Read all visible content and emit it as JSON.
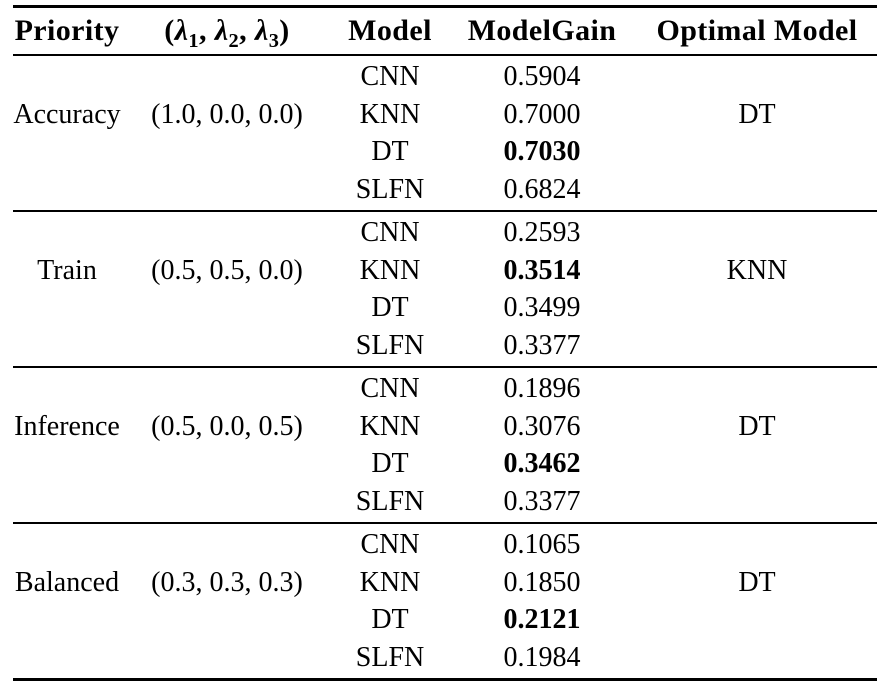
{
  "header": {
    "priority": "Priority",
    "lambda": {
      "open": "(",
      "l1": "λ",
      "sub1": "1",
      "sep1": ", ",
      "l2": "λ",
      "sub2": "2",
      "sep2": ", ",
      "l3": "λ",
      "sub3": "3",
      "close": ")"
    },
    "model": "Model",
    "modelgain": "ModelGain",
    "optimal": "Optimal Model"
  },
  "groups": [
    {
      "priority": "Accuracy",
      "lambdas": "(1.0, 0.0, 0.0)",
      "optimal": "DT",
      "rows": [
        {
          "model": "CNN",
          "gain": "0.5904",
          "best": false
        },
        {
          "model": "KNN",
          "gain": "0.7000",
          "best": false
        },
        {
          "model": "DT",
          "gain": "0.7030",
          "best": true
        },
        {
          "model": "SLFN",
          "gain": "0.6824",
          "best": false
        }
      ]
    },
    {
      "priority": "Train",
      "lambdas": "(0.5, 0.5, 0.0)",
      "optimal": "KNN",
      "rows": [
        {
          "model": "CNN",
          "gain": "0.2593",
          "best": false
        },
        {
          "model": "KNN",
          "gain": "0.3514",
          "best": true
        },
        {
          "model": "DT",
          "gain": "0.3499",
          "best": false
        },
        {
          "model": "SLFN",
          "gain": "0.3377",
          "best": false
        }
      ]
    },
    {
      "priority": "Inference",
      "lambdas": "(0.5, 0.0, 0.5)",
      "optimal": "DT",
      "rows": [
        {
          "model": "CNN",
          "gain": "0.1896",
          "best": false
        },
        {
          "model": "KNN",
          "gain": "0.3076",
          "best": false
        },
        {
          "model": "DT",
          "gain": "0.3462",
          "best": true
        },
        {
          "model": "SLFN",
          "gain": "0.3377",
          "best": false
        }
      ]
    },
    {
      "priority": "Balanced",
      "lambdas": "(0.3, 0.3, 0.3)",
      "optimal": "DT",
      "rows": [
        {
          "model": "CNN",
          "gain": "0.1065",
          "best": false
        },
        {
          "model": "KNN",
          "gain": "0.1850",
          "best": false
        },
        {
          "model": "DT",
          "gain": "0.2121",
          "best": true
        },
        {
          "model": "SLFN",
          "gain": "0.1984",
          "best": false
        }
      ]
    }
  ],
  "colors": {
    "text": "#000000",
    "background": "#ffffff",
    "rule": "#000000"
  }
}
